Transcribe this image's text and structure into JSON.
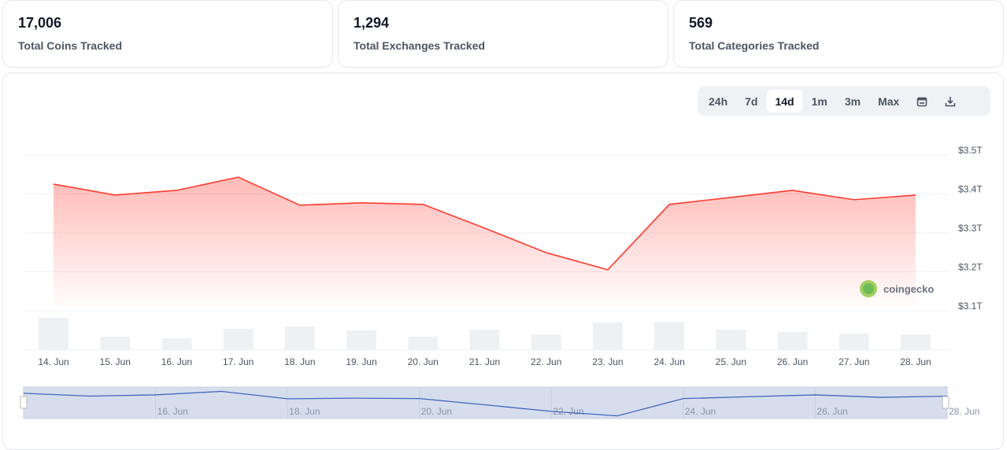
{
  "stats": [
    {
      "value": "17,006",
      "label": "Total Coins Tracked"
    },
    {
      "value": "1,294",
      "label": "Total Exchanges Tracked"
    },
    {
      "value": "569",
      "label": "Total Categories Tracked"
    }
  ],
  "range_buttons": [
    "24h",
    "7d",
    "14d",
    "1m",
    "3m",
    "Max"
  ],
  "active_range": "14d",
  "icons": {
    "calendar": "calendar-icon",
    "download": "download-icon"
  },
  "watermark": "coingecko",
  "colors": {
    "line": "#ff3b30",
    "volume": "#eef1f4",
    "navigator": "#d6deee",
    "navigator_line": "#4466bb"
  },
  "chart_data": {
    "type": "line",
    "categories": [
      "14. Jun",
      "15. Jun",
      "16. Jun",
      "17. Jun",
      "18. Jun",
      "19. Jun",
      "20. Jun",
      "21. Jun",
      "22. Jun",
      "23. Jun",
      "24. Jun",
      "25. Jun",
      "26. Jun",
      "27. Jun",
      "28. Jun"
    ],
    "series": [
      {
        "values": [
          3.413,
          3.385,
          3.397,
          3.431,
          3.359,
          3.365,
          3.361,
          3.3,
          3.237,
          3.193,
          3.361,
          3.379,
          3.397,
          3.373,
          3.385
        ]
      }
    ],
    "volume_relative": [
      41,
      17,
      15,
      27,
      30,
      25,
      17,
      26,
      20,
      35,
      36,
      26,
      23,
      21,
      20
    ],
    "yticks": [
      "$3.1T",
      "$3.2T",
      "$3.3T",
      "$3.4T",
      "$3.5T"
    ],
    "ylim": [
      3.1,
      3.5
    ],
    "grid": true,
    "navigator_ticks": [
      "16. Jun",
      "18. Jun",
      "20. Jun",
      "22. Jun",
      "24. Jun",
      "26. Jun",
      "28. Jun"
    ]
  }
}
